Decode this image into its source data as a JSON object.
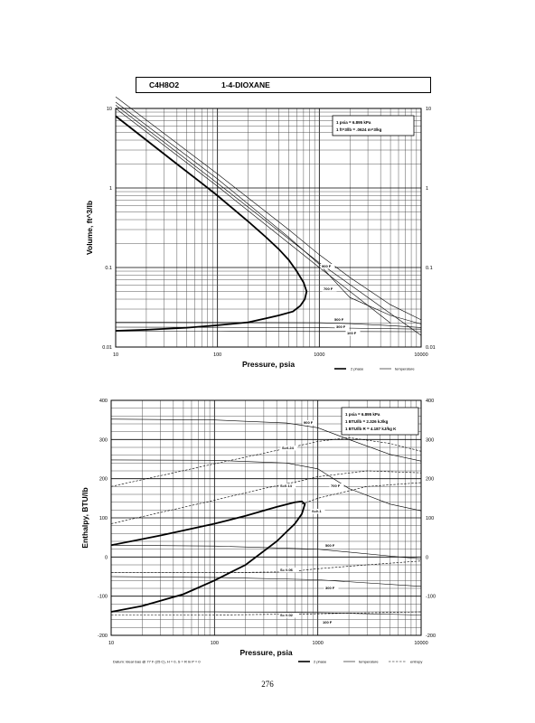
{
  "header": {
    "formula": "C4H8O2",
    "name": "1-4-DIOXANE"
  },
  "page_number": "276",
  "chart_data": [
    {
      "type": "line",
      "xlabel": "Pressure,  psia",
      "ylabel": "Volume, ft^3/lb",
      "x_scale": "log",
      "y_scale": "log",
      "xlim": [
        10,
        10000
      ],
      "ylim": [
        0.01,
        10
      ],
      "grid": true,
      "x_ticks": [
        "10",
        "100",
        "1000",
        "10000"
      ],
      "y_ticks": [
        "10",
        "1",
        "0.1",
        "0.01"
      ],
      "y_ticks_right": [
        "10",
        "1",
        "0.1",
        "0.01"
      ],
      "notes": [
        "1 psia  =  6.895 kPa",
        "1 ft^3/lb  =  .0624 m^3/kg"
      ],
      "legend": [
        "2 phase",
        "temperature"
      ],
      "legend_position": "bottom-right",
      "series": [
        {
          "kind": "2 phase",
          "x": [
            10,
            20,
            40,
            70,
            100,
            200,
            300,
            400,
            500,
            600,
            700,
            750,
            720,
            650,
            550,
            400,
            300,
            200,
            100,
            50,
            20,
            10
          ],
          "y": [
            8.0,
            4.0,
            2.0,
            1.15,
            0.8,
            0.38,
            0.24,
            0.17,
            0.125,
            0.09,
            0.065,
            0.05,
            0.04,
            0.033,
            0.028,
            0.025,
            0.023,
            0.0205,
            0.0188,
            0.0175,
            0.0165,
            0.016
          ]
        },
        {
          "kind": "temperature",
          "label": "100 F",
          "x": [
            10,
            100,
            1000,
            10000
          ],
          "y": [
            0.0158,
            0.0158,
            0.0157,
            0.0156
          ]
        },
        {
          "kind": "temperature",
          "label": "300 F",
          "x": [
            10,
            100,
            1000,
            10000
          ],
          "y": [
            0.0178,
            0.0177,
            0.0175,
            0.0168
          ]
        },
        {
          "kind": "temperature",
          "label": "500 F",
          "x": [
            10,
            100,
            1000,
            2000,
            5000,
            10000
          ],
          "y": [
            0.0205,
            0.0204,
            0.0202,
            0.0197,
            0.0186,
            0.0176
          ]
        },
        {
          "kind": "temperature",
          "label": "700 F",
          "x": [
            10,
            100,
            500,
            1000,
            1500,
            2000,
            5000,
            10000
          ],
          "y": [
            12,
            1.3,
            0.24,
            0.11,
            0.062,
            0.042,
            0.025,
            0.0195
          ]
        },
        {
          "kind": "temperature",
          "label": "900 F",
          "x": [
            10,
            100,
            500,
            1000,
            2000,
            5000,
            10000
          ],
          "y": [
            14,
            1.5,
            0.3,
            0.145,
            0.075,
            0.034,
            0.022
          ]
        },
        {
          "kind": "temperature",
          "x": [
            10,
            100,
            1000,
            10000
          ],
          "y": [
            11,
            1.15,
            0.115,
            0.014
          ]
        },
        {
          "kind": "temperature",
          "x": [
            10,
            100,
            1000,
            5000
          ],
          "y": [
            10,
            1.05,
            0.1,
            0.02
          ]
        }
      ]
    },
    {
      "type": "line",
      "xlabel": "Pressure,  psia",
      "ylabel": "Enthalpy, BTU/lb",
      "x_scale": "log",
      "xlim": [
        10,
        10000
      ],
      "ylim": [
        -200,
        400
      ],
      "grid": true,
      "x_ticks": [
        "10",
        "100",
        "1000",
        "10000"
      ],
      "y_ticks": [
        "400",
        "300",
        "200",
        "100",
        "0",
        "-100",
        "-200"
      ],
      "y_ticks_right": [
        "400",
        "300",
        "200",
        "100",
        "0",
        "-100",
        "-200"
      ],
      "notes": [
        "1 psia  =  6.895 kPa",
        "1 BTU/lb  =  2.326 kJ/kg",
        "1 BTU/lb R  =  4.187 kJ/kg K"
      ],
      "footnote": "Datum: Ideal Gas @ 77 F (25 C),  H = 0,  S = R ln P = 0",
      "legend": [
        "2 phase",
        "temperature",
        "entropy"
      ],
      "legend_position": "bottom-right",
      "series": [
        {
          "kind": "2 phase",
          "x": [
            10,
            30,
            100,
            200,
            400,
            600,
            700,
            750,
            700,
            600,
            400,
            200,
            100,
            50,
            20,
            10
          ],
          "y": [
            30,
            55,
            85,
            105,
            128,
            140,
            142,
            135,
            110,
            85,
            40,
            -20,
            -60,
            -95,
            -125,
            -140
          ]
        },
        {
          "kind": "temperature",
          "label": "100 F",
          "x": [
            10,
            100,
            1000,
            10000
          ],
          "y": [
            -140,
            -140,
            -142,
            -148
          ]
        },
        {
          "kind": "temperature",
          "label": "300 F",
          "x": [
            10,
            100,
            1000,
            10000
          ],
          "y": [
            -50,
            -52,
            -58,
            -75
          ]
        },
        {
          "kind": "temperature",
          "label": "500 F",
          "x": [
            10,
            100,
            1000,
            10000
          ],
          "y": [
            30,
            28,
            20,
            -5
          ]
        },
        {
          "kind": "temperature",
          "label": "700 F",
          "x": [
            10,
            100,
            500,
            1000,
            2000,
            5000,
            10000
          ],
          "y": [
            248,
            247,
            240,
            225,
            175,
            135,
            118
          ]
        },
        {
          "kind": "temperature",
          "label": "900 F",
          "x": [
            10,
            100,
            500,
            1000,
            2000,
            5000,
            10000
          ],
          "y": [
            352,
            350,
            342,
            330,
            300,
            262,
            245
          ]
        },
        {
          "kind": "entropy",
          "label": "S=0.24",
          "x": [
            10,
            100,
            300,
            1000,
            2000,
            5000,
            10000
          ],
          "y": [
            180,
            238,
            265,
            295,
            305,
            290,
            270
          ]
        },
        {
          "kind": "entropy",
          "label": "S=0.14",
          "x": [
            10,
            100,
            300,
            700,
            1000,
            3000,
            10000
          ],
          "y": [
            85,
            145,
            175,
            195,
            205,
            220,
            215
          ]
        },
        {
          "kind": "entropy",
          "label": "S=0.1",
          "x": [
            700,
            1000,
            3000,
            10000
          ],
          "y": [
            135,
            150,
            180,
            190
          ]
        },
        {
          "kind": "entropy",
          "label": "S= 0.06",
          "x": [
            10,
            100,
            500,
            1000,
            3000,
            10000
          ],
          "y": [
            -40,
            -40,
            -38,
            -30,
            -20,
            -10
          ]
        },
        {
          "kind": "entropy",
          "label": "S= 0.02",
          "x": [
            10,
            100,
            1000,
            10000
          ],
          "y": [
            -148,
            -148,
            -145,
            -140
          ]
        }
      ]
    }
  ]
}
